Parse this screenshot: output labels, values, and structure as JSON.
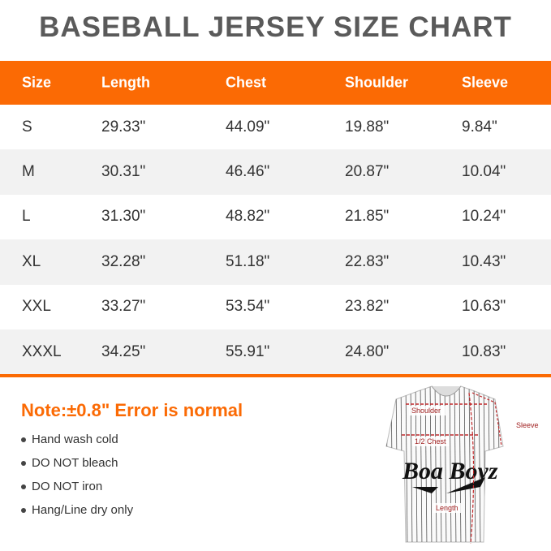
{
  "title": "BASEBALL JERSEY SIZE CHART",
  "columns": [
    "Size",
    "Length",
    "Chest",
    "Shoulder",
    "Sleeve"
  ],
  "rows": [
    [
      "S",
      "29.33\"",
      "44.09\"",
      "19.88\"",
      "9.84\""
    ],
    [
      "M",
      "30.31\"",
      "46.46\"",
      "20.87\"",
      "10.04\""
    ],
    [
      "L",
      "31.30\"",
      "48.82\"",
      "21.85\"",
      "10.24\""
    ],
    [
      "XL",
      "32.28\"",
      "51.18\"",
      "22.83\"",
      "10.43\""
    ],
    [
      "XXL",
      "33.27\"",
      "53.54\"",
      "23.82\"",
      "10.63\""
    ],
    [
      "XXXL",
      "34.25\"",
      "55.91\"",
      "24.80\"",
      "10.83\""
    ]
  ],
  "note": "Note:±0.8\" Error is normal",
  "care": [
    "Hand wash cold",
    "DO NOT bleach",
    "DO NOT iron",
    "Hang/Line dry only"
  ],
  "diagram": {
    "shoulder": "Shoulder",
    "sleeve": "Sleeve",
    "chest": "1/2 Chest",
    "length": "Length",
    "logo": "Boa Boyz"
  },
  "colors": {
    "accent": "#fb6a04",
    "title": "#5a5a5a",
    "measure": "#c0282a"
  }
}
